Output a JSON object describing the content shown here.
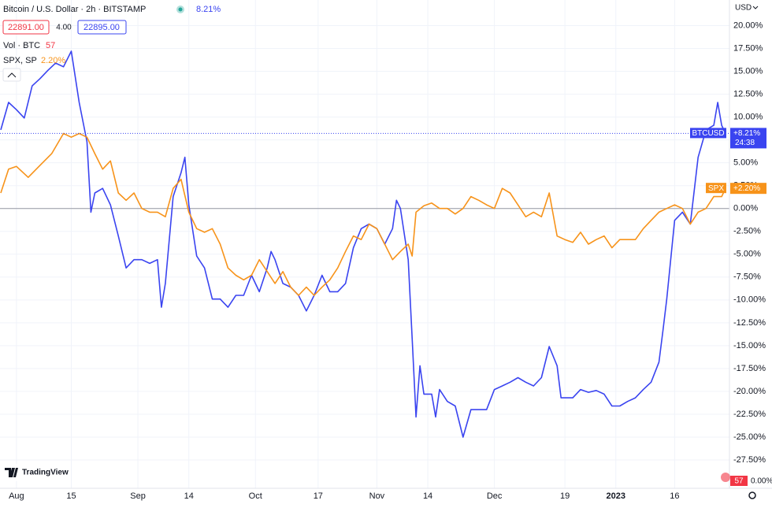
{
  "chart_data": {
    "type": "line",
    "title": "Bitcoin / U.S. Dollar · 2h · BITSTAMP",
    "change_label": "8.21%",
    "quote_bid": "22891.00",
    "quote_spread": "4.00",
    "quote_ask": "22895.00",
    "volume_label": "Vol · BTC",
    "volume_value": "57",
    "compare_label": "SPX, SP",
    "compare_change": "2.20%",
    "currency_label": "USD",
    "countdown": "24:38",
    "volume_scale_label": "0.00%",
    "logo_text": "TradingView",
    "ylim": [
      -30.6,
      22.8
    ],
    "yticks": [
      {
        "value": -27.5,
        "label": "-27.50%"
      },
      {
        "value": -25,
        "label": "-25.00%"
      },
      {
        "value": -22.5,
        "label": "-22.50%"
      },
      {
        "value": -20,
        "label": "-20.00%"
      },
      {
        "value": -17.5,
        "label": "-17.50%"
      },
      {
        "value": -15,
        "label": "-15.00%"
      },
      {
        "value": -12.5,
        "label": "-12.50%"
      },
      {
        "value": -10,
        "label": "-10.00%"
      },
      {
        "value": -7.5,
        "label": "-7.50%"
      },
      {
        "value": -5,
        "label": "-5.00%"
      },
      {
        "value": -2.5,
        "label": "-2.50%"
      },
      {
        "value": 0,
        "label": "0.00%"
      },
      {
        "value": 2.5,
        "label": "2.50%"
      },
      {
        "value": 5,
        "label": "5.00%"
      },
      {
        "value": 7.5,
        "label": "7.50%"
      },
      {
        "value": 10,
        "label": "10.00%"
      },
      {
        "value": 12.5,
        "label": "12.50%"
      },
      {
        "value": 15,
        "label": "15.00%"
      },
      {
        "value": 17.5,
        "label": "17.50%"
      },
      {
        "value": 20,
        "label": "20.00%"
      }
    ],
    "baseline": 0,
    "xlim": [
      -4.2,
      182
    ],
    "xticks": [
      {
        "value": 0,
        "label": "Aug"
      },
      {
        "value": 14,
        "label": "15"
      },
      {
        "value": 31,
        "label": "Sep"
      },
      {
        "value": 44,
        "label": "14"
      },
      {
        "value": 61,
        "label": "Oct"
      },
      {
        "value": 77,
        "label": "17"
      },
      {
        "value": 92,
        "label": "Nov"
      },
      {
        "value": 105,
        "label": "14"
      },
      {
        "value": 122,
        "label": "Dec"
      },
      {
        "value": 140,
        "label": "19"
      },
      {
        "value": 153,
        "label": "2023"
      },
      {
        "value": 168,
        "label": "16"
      }
    ],
    "grid": true,
    "series": [
      {
        "name": "BTCUSD",
        "color": "#3a44f0",
        "last_label": "+8.21%",
        "x": [
          -4,
          -2,
          0,
          2,
          4,
          6,
          8,
          10,
          12,
          14,
          16,
          18,
          19,
          20,
          22,
          24,
          26,
          28,
          30,
          32,
          34,
          36,
          37,
          38,
          40,
          42,
          43,
          44,
          46,
          48,
          50,
          52,
          54,
          56,
          58,
          60,
          62,
          64,
          65,
          66,
          68,
          70,
          72,
          74,
          76,
          78,
          80,
          82,
          84,
          86,
          88,
          90,
          92,
          94,
          96,
          97,
          98,
          100,
          101,
          102,
          103,
          104,
          106,
          107,
          108,
          110,
          112,
          114,
          116,
          118,
          120,
          122,
          124,
          126,
          128,
          130,
          132,
          134,
          136,
          138,
          139,
          140,
          142,
          144,
          146,
          148,
          150,
          152,
          154,
          156,
          158,
          160,
          162,
          164,
          165,
          166,
          167,
          168,
          170,
          172,
          174,
          176,
          178,
          179,
          180,
          181
        ],
        "values": [
          8.6,
          11.6,
          10.8,
          9.9,
          13.4,
          14.2,
          15.1,
          15.9,
          15.5,
          17.2,
          11.6,
          7.3,
          -0.4,
          1.7,
          2.2,
          0.4,
          -3.0,
          -6.5,
          -5.6,
          -5.6,
          -6.0,
          -5.6,
          -10.8,
          -8.2,
          1.3,
          3.9,
          5.6,
          0.4,
          -5.2,
          -6.5,
          -9.9,
          -9.9,
          -10.8,
          -9.5,
          -9.5,
          -7.3,
          -9.1,
          -6.5,
          -4.7,
          -5.6,
          -8.2,
          -8.6,
          -9.5,
          -11.2,
          -9.5,
          -7.3,
          -9.1,
          -9.1,
          -8.2,
          -4.3,
          -2.2,
          -1.7,
          -2.2,
          -3.9,
          -2.2,
          0.9,
          0.0,
          -5.6,
          -14.2,
          -22.8,
          -17.2,
          -20.3,
          -20.3,
          -22.8,
          -19.8,
          -21.1,
          -21.6,
          -25.0,
          -22.0,
          -22.0,
          -22.0,
          -19.8,
          -19.4,
          -19.0,
          -18.5,
          -19.0,
          -19.4,
          -18.5,
          -15.1,
          -17.2,
          -20.7,
          -20.7,
          -20.7,
          -19.8,
          -20.1,
          -19.9,
          -20.3,
          -21.6,
          -21.6,
          -21.1,
          -20.7,
          -19.8,
          -19.0,
          -16.8,
          -13.4,
          -9.9,
          -5.6,
          -1.3,
          -0.4,
          -1.7,
          5.6,
          8.6,
          9.1,
          11.6,
          9.1,
          8.21
        ]
      },
      {
        "name": "SPX",
        "color": "#f7931a",
        "last_label": "+2.20%",
        "x": [
          -4,
          -2,
          0,
          3,
          6,
          9,
          12,
          14,
          16,
          18,
          20,
          22,
          24,
          26,
          28,
          30,
          32,
          34,
          36,
          38,
          40,
          42,
          44,
          46,
          48,
          50,
          52,
          54,
          56,
          58,
          60,
          62,
          64,
          66,
          68,
          70,
          72,
          74,
          76,
          78,
          80,
          82,
          84,
          86,
          88,
          90,
          92,
          94,
          96,
          98,
          100,
          101,
          102,
          104,
          106,
          108,
          110,
          112,
          114,
          116,
          118,
          120,
          122,
          124,
          126,
          128,
          130,
          132,
          134,
          136,
          138,
          140,
          142,
          144,
          146,
          148,
          150,
          152,
          154,
          156,
          158,
          160,
          162,
          164,
          166,
          168,
          170,
          172,
          174,
          176,
          178,
          180,
          181
        ],
        "values": [
          1.7,
          4.3,
          4.6,
          3.4,
          4.7,
          6.0,
          8.2,
          7.8,
          8.2,
          7.8,
          6.0,
          4.3,
          5.2,
          1.7,
          0.9,
          1.7,
          0.0,
          -0.4,
          -0.4,
          -0.9,
          2.2,
          3.2,
          -0.4,
          -2.2,
          -2.6,
          -2.2,
          -3.9,
          -6.5,
          -7.3,
          -7.8,
          -7.3,
          -5.6,
          -6.9,
          -8.2,
          -6.9,
          -8.6,
          -9.5,
          -8.6,
          -9.5,
          -8.6,
          -7.8,
          -6.5,
          -4.7,
          -3.0,
          -3.4,
          -1.7,
          -2.2,
          -3.9,
          -5.6,
          -4.7,
          -3.9,
          -5.2,
          -0.4,
          0.3,
          0.6,
          0.0,
          0.0,
          -0.6,
          0.0,
          1.3,
          0.9,
          0.4,
          0.0,
          2.2,
          1.7,
          0.4,
          -0.9,
          -0.4,
          -0.9,
          1.7,
          -3.0,
          -3.4,
          -3.7,
          -2.6,
          -3.9,
          -3.4,
          -3.0,
          -4.3,
          -3.4,
          -3.4,
          -3.4,
          -2.2,
          -1.3,
          -0.4,
          0.0,
          0.4,
          0.0,
          -1.7,
          -0.4,
          0.0,
          1.3,
          1.3,
          2.2
        ]
      }
    ]
  }
}
